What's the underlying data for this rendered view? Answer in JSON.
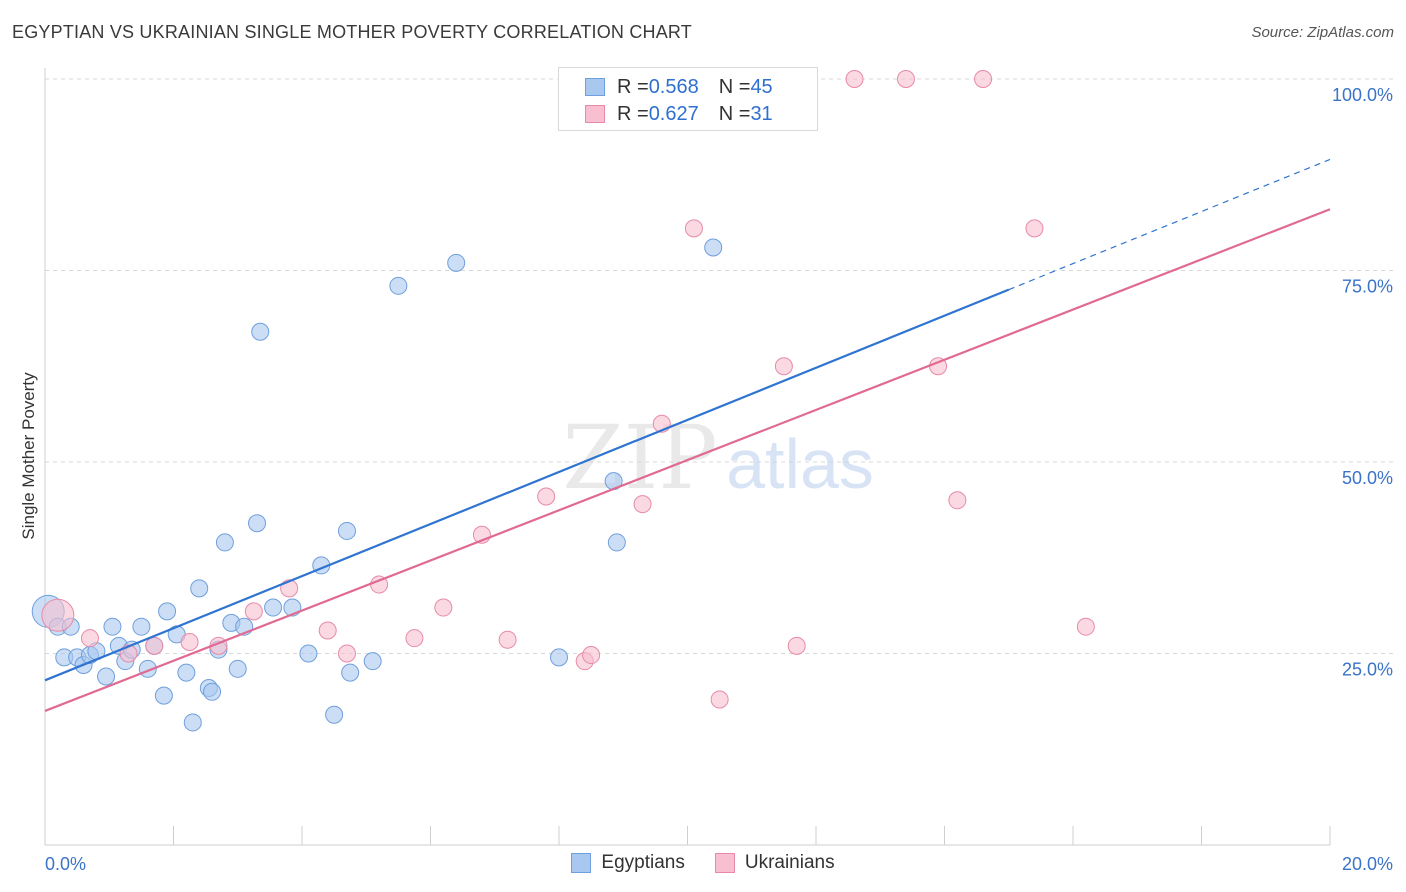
{
  "title": "EGYPTIAN VS UKRAINIAN SINGLE MOTHER POVERTY CORRELATION CHART",
  "source": "Source: ZipAtlas.com",
  "watermark": {
    "zip": "ZIP",
    "atlas": "atlas"
  },
  "legend_top": [
    {
      "r_label": "R = ",
      "r_value": "0.568",
      "n_label": "N = ",
      "n_value": "45"
    },
    {
      "r_label": "R = ",
      "r_value": "0.627",
      "n_label": "N = ",
      "n_value": "31"
    }
  ],
  "colors": {
    "egyptians_fill": "#a9c8f0",
    "egyptians_stroke": "#6f9fdc",
    "egyptians_line": "#2f74d0",
    "ukrainians_fill": "#f7bfd0",
    "ukrainians_stroke": "#e88aa8",
    "ukrainians_line": "#e06a92",
    "axis_label": "#3a73c8",
    "grid": "#d8d8d8"
  },
  "chart_data": {
    "type": "scatter",
    "title": "EGYPTIAN VS UKRAINIAN SINGLE MOTHER POVERTY CORRELATION CHART",
    "xlabel": "",
    "ylabel": "Single Mother Poverty",
    "xlim": [
      0,
      20
    ],
    "ylim": [
      0,
      100
    ],
    "x_tick_labels": [
      "0.0%",
      "20.0%"
    ],
    "y_tick_labels": [
      "25.0%",
      "50.0%",
      "75.0%",
      "100.0%"
    ],
    "y_ticks": [
      25,
      50,
      75,
      100
    ],
    "grid": true,
    "legend_position": "top-center",
    "series": [
      {
        "name": "Egyptians",
        "r": 0.568,
        "n": 45,
        "trend": {
          "x0": 0,
          "y0": 21.5,
          "x1": 15.0,
          "y1": 72.5,
          "dashed_to_x": 20.0,
          "dashed_to_y": 89.5
        },
        "points": [
          [
            0.05,
            30.5
          ],
          [
            0.2,
            28.5
          ],
          [
            0.4,
            28.5
          ],
          [
            0.3,
            24.5
          ],
          [
            0.5,
            24.5
          ],
          [
            0.6,
            23.5
          ],
          [
            0.7,
            24.8
          ],
          [
            0.8,
            25.3
          ],
          [
            0.95,
            22.0
          ],
          [
            1.05,
            28.5
          ],
          [
            1.15,
            26.0
          ],
          [
            1.25,
            24.0
          ],
          [
            1.35,
            25.5
          ],
          [
            1.5,
            28.5
          ],
          [
            1.6,
            23.0
          ],
          [
            1.7,
            26.0
          ],
          [
            1.85,
            19.5
          ],
          [
            1.9,
            30.5
          ],
          [
            2.05,
            27.5
          ],
          [
            2.2,
            22.5
          ],
          [
            2.3,
            16.0
          ],
          [
            2.4,
            33.5
          ],
          [
            2.55,
            20.5
          ],
          [
            2.6,
            20.0
          ],
          [
            2.7,
            25.5
          ],
          [
            2.8,
            39.5
          ],
          [
            2.9,
            29.0
          ],
          [
            3.0,
            23.0
          ],
          [
            3.1,
            28.5
          ],
          [
            3.3,
            42.0
          ],
          [
            3.35,
            67.0
          ],
          [
            3.55,
            31.0
          ],
          [
            3.85,
            31.0
          ],
          [
            4.1,
            25.0
          ],
          [
            4.3,
            36.5
          ],
          [
            4.5,
            17.0
          ],
          [
            4.7,
            41.0
          ],
          [
            4.75,
            22.5
          ],
          [
            5.1,
            24.0
          ],
          [
            5.5,
            73.0
          ],
          [
            6.4,
            76.0
          ],
          [
            8.0,
            24.5
          ],
          [
            8.85,
            47.5
          ],
          [
            8.9,
            39.5
          ],
          [
            10.4,
            78.0
          ]
        ]
      },
      {
        "name": "Ukrainians",
        "r": 0.627,
        "n": 31,
        "trend": {
          "x0": 0,
          "y0": 17.5,
          "x1": 20.0,
          "y1": 83.0
        },
        "points": [
          [
            0.2,
            30.0
          ],
          [
            0.7,
            27.0
          ],
          [
            1.3,
            25.0
          ],
          [
            1.7,
            26.0
          ],
          [
            2.25,
            26.5
          ],
          [
            2.7,
            26.0
          ],
          [
            3.25,
            30.5
          ],
          [
            3.8,
            33.5
          ],
          [
            4.4,
            28.0
          ],
          [
            4.7,
            25.0
          ],
          [
            5.2,
            34.0
          ],
          [
            5.75,
            27.0
          ],
          [
            6.2,
            31.0
          ],
          [
            6.8,
            40.5
          ],
          [
            7.2,
            26.8
          ],
          [
            7.8,
            45.5
          ],
          [
            8.4,
            24.0
          ],
          [
            8.5,
            24.8
          ],
          [
            9.3,
            44.5
          ],
          [
            9.6,
            55.0
          ],
          [
            10.1,
            80.5
          ],
          [
            10.5,
            19.0
          ],
          [
            11.5,
            62.5
          ],
          [
            11.7,
            26.0
          ],
          [
            12.6,
            100.0
          ],
          [
            13.4,
            100.0
          ],
          [
            13.9,
            62.5
          ],
          [
            14.2,
            45.0
          ],
          [
            14.6,
            100.0
          ],
          [
            15.4,
            80.5
          ],
          [
            16.2,
            28.5
          ]
        ]
      }
    ]
  }
}
